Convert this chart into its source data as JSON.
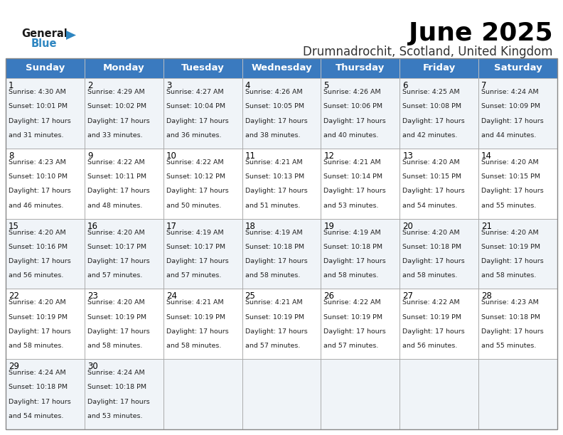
{
  "title": "June 2025",
  "subtitle": "Drumnadrochit, Scotland, United Kingdom",
  "days_of_week": [
    "Sunday",
    "Monday",
    "Tuesday",
    "Wednesday",
    "Thursday",
    "Friday",
    "Saturday"
  ],
  "header_bg": "#3a7abf",
  "header_text": "#ffffff",
  "row_bg_odd": "#f0f4f8",
  "row_bg_even": "#ffffff",
  "border_color": "#aaaaaa",
  "calendar_data": [
    [
      {
        "day": "1",
        "sunrise": "4:30 AM",
        "sunset": "10:01 PM",
        "daylight_l1": "Daylight: 17 hours",
        "daylight_l2": "and 31 minutes."
      },
      {
        "day": "2",
        "sunrise": "4:29 AM",
        "sunset": "10:02 PM",
        "daylight_l1": "Daylight: 17 hours",
        "daylight_l2": "and 33 minutes."
      },
      {
        "day": "3",
        "sunrise": "4:27 AM",
        "sunset": "10:04 PM",
        "daylight_l1": "Daylight: 17 hours",
        "daylight_l2": "and 36 minutes."
      },
      {
        "day": "4",
        "sunrise": "4:26 AM",
        "sunset": "10:05 PM",
        "daylight_l1": "Daylight: 17 hours",
        "daylight_l2": "and 38 minutes."
      },
      {
        "day": "5",
        "sunrise": "4:26 AM",
        "sunset": "10:06 PM",
        "daylight_l1": "Daylight: 17 hours",
        "daylight_l2": "and 40 minutes."
      },
      {
        "day": "6",
        "sunrise": "4:25 AM",
        "sunset": "10:08 PM",
        "daylight_l1": "Daylight: 17 hours",
        "daylight_l2": "and 42 minutes."
      },
      {
        "day": "7",
        "sunrise": "4:24 AM",
        "sunset": "10:09 PM",
        "daylight_l1": "Daylight: 17 hours",
        "daylight_l2": "and 44 minutes."
      }
    ],
    [
      {
        "day": "8",
        "sunrise": "4:23 AM",
        "sunset": "10:10 PM",
        "daylight_l1": "Daylight: 17 hours",
        "daylight_l2": "and 46 minutes."
      },
      {
        "day": "9",
        "sunrise": "4:22 AM",
        "sunset": "10:11 PM",
        "daylight_l1": "Daylight: 17 hours",
        "daylight_l2": "and 48 minutes."
      },
      {
        "day": "10",
        "sunrise": "4:22 AM",
        "sunset": "10:12 PM",
        "daylight_l1": "Daylight: 17 hours",
        "daylight_l2": "and 50 minutes."
      },
      {
        "day": "11",
        "sunrise": "4:21 AM",
        "sunset": "10:13 PM",
        "daylight_l1": "Daylight: 17 hours",
        "daylight_l2": "and 51 minutes."
      },
      {
        "day": "12",
        "sunrise": "4:21 AM",
        "sunset": "10:14 PM",
        "daylight_l1": "Daylight: 17 hours",
        "daylight_l2": "and 53 minutes."
      },
      {
        "day": "13",
        "sunrise": "4:20 AM",
        "sunset": "10:15 PM",
        "daylight_l1": "Daylight: 17 hours",
        "daylight_l2": "and 54 minutes."
      },
      {
        "day": "14",
        "sunrise": "4:20 AM",
        "sunset": "10:15 PM",
        "daylight_l1": "Daylight: 17 hours",
        "daylight_l2": "and 55 minutes."
      }
    ],
    [
      {
        "day": "15",
        "sunrise": "4:20 AM",
        "sunset": "10:16 PM",
        "daylight_l1": "Daylight: 17 hours",
        "daylight_l2": "and 56 minutes."
      },
      {
        "day": "16",
        "sunrise": "4:20 AM",
        "sunset": "10:17 PM",
        "daylight_l1": "Daylight: 17 hours",
        "daylight_l2": "and 57 minutes."
      },
      {
        "day": "17",
        "sunrise": "4:19 AM",
        "sunset": "10:17 PM",
        "daylight_l1": "Daylight: 17 hours",
        "daylight_l2": "and 57 minutes."
      },
      {
        "day": "18",
        "sunrise": "4:19 AM",
        "sunset": "10:18 PM",
        "daylight_l1": "Daylight: 17 hours",
        "daylight_l2": "and 58 minutes."
      },
      {
        "day": "19",
        "sunrise": "4:19 AM",
        "sunset": "10:18 PM",
        "daylight_l1": "Daylight: 17 hours",
        "daylight_l2": "and 58 minutes."
      },
      {
        "day": "20",
        "sunrise": "4:20 AM",
        "sunset": "10:18 PM",
        "daylight_l1": "Daylight: 17 hours",
        "daylight_l2": "and 58 minutes."
      },
      {
        "day": "21",
        "sunrise": "4:20 AM",
        "sunset": "10:19 PM",
        "daylight_l1": "Daylight: 17 hours",
        "daylight_l2": "and 58 minutes."
      }
    ],
    [
      {
        "day": "22",
        "sunrise": "4:20 AM",
        "sunset": "10:19 PM",
        "daylight_l1": "Daylight: 17 hours",
        "daylight_l2": "and 58 minutes."
      },
      {
        "day": "23",
        "sunrise": "4:20 AM",
        "sunset": "10:19 PM",
        "daylight_l1": "Daylight: 17 hours",
        "daylight_l2": "and 58 minutes."
      },
      {
        "day": "24",
        "sunrise": "4:21 AM",
        "sunset": "10:19 PM",
        "daylight_l1": "Daylight: 17 hours",
        "daylight_l2": "and 58 minutes."
      },
      {
        "day": "25",
        "sunrise": "4:21 AM",
        "sunset": "10:19 PM",
        "daylight_l1": "Daylight: 17 hours",
        "daylight_l2": "and 57 minutes."
      },
      {
        "day": "26",
        "sunrise": "4:22 AM",
        "sunset": "10:19 PM",
        "daylight_l1": "Daylight: 17 hours",
        "daylight_l2": "and 57 minutes."
      },
      {
        "day": "27",
        "sunrise": "4:22 AM",
        "sunset": "10:19 PM",
        "daylight_l1": "Daylight: 17 hours",
        "daylight_l2": "and 56 minutes."
      },
      {
        "day": "28",
        "sunrise": "4:23 AM",
        "sunset": "10:18 PM",
        "daylight_l1": "Daylight: 17 hours",
        "daylight_l2": "and 55 minutes."
      }
    ],
    [
      {
        "day": "29",
        "sunrise": "4:24 AM",
        "sunset": "10:18 PM",
        "daylight_l1": "Daylight: 17 hours",
        "daylight_l2": "and 54 minutes."
      },
      {
        "day": "30",
        "sunrise": "4:24 AM",
        "sunset": "10:18 PM",
        "daylight_l1": "Daylight: 17 hours",
        "daylight_l2": "and 53 minutes."
      },
      null,
      null,
      null,
      null,
      null
    ]
  ],
  "logo_general_color": "#1a1a1a",
  "logo_blue_color": "#2e86c1",
  "title_fontsize": 26,
  "subtitle_fontsize": 12,
  "header_fontsize": 9.5,
  "cell_day_fontsize": 8.5,
  "cell_info_fontsize": 6.8
}
